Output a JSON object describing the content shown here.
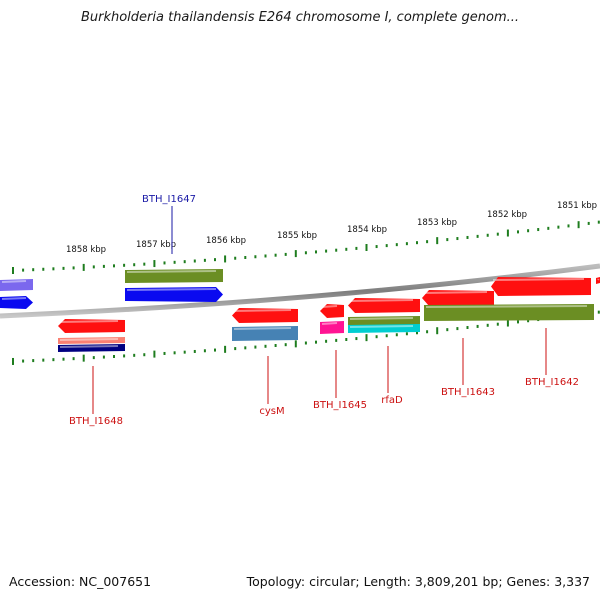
{
  "title": "Burkholderia thailandensis E264 chromosome I, complete genom...",
  "footer": {
    "accession": "Accession: NC_007651",
    "summary": "Topology: circular; Length: 3,809,201 bp; Genes: 3,337"
  },
  "colors": {
    "backbone": "#8a8a8a",
    "tick": "#1e7d1e",
    "forward_label": "#1a1aa6",
    "reverse_label": "#cc1111",
    "cds_red": "#ff1010",
    "cds_blue": "#0a0af0",
    "cds_olive": "#6b8e23",
    "cds_purple": "#7b68ee",
    "cds_steel": "#4682b4",
    "cds_magenta": "#ff1493",
    "cds_cyan": "#00ced1",
    "cds_salmon": "#fa8072",
    "cds_navy": "#000080"
  },
  "map": {
    "visible_range_kbp": [
      1850.5,
      1859.6
    ],
    "tick_labels_kbp": [
      1858,
      1857,
      1856,
      1855,
      1854,
      1853,
      1852,
      1851
    ],
    "tick_label_unit": "kbp"
  },
  "genes": {
    "forward": [
      {
        "label": "BTH_I1647",
        "color": "cds_blue"
      }
    ],
    "reverse": [
      {
        "label": "BTH_I1648",
        "color": "cds_red"
      },
      {
        "label": "cysM",
        "color": "cds_red"
      },
      {
        "label": "BTH_I1645",
        "color": "cds_red"
      },
      {
        "label": "rfaD",
        "color": "cds_red"
      },
      {
        "label": "BTH_I1643",
        "color": "cds_red"
      },
      {
        "label": "BTH_I1642",
        "color": "cds_red"
      }
    ]
  }
}
